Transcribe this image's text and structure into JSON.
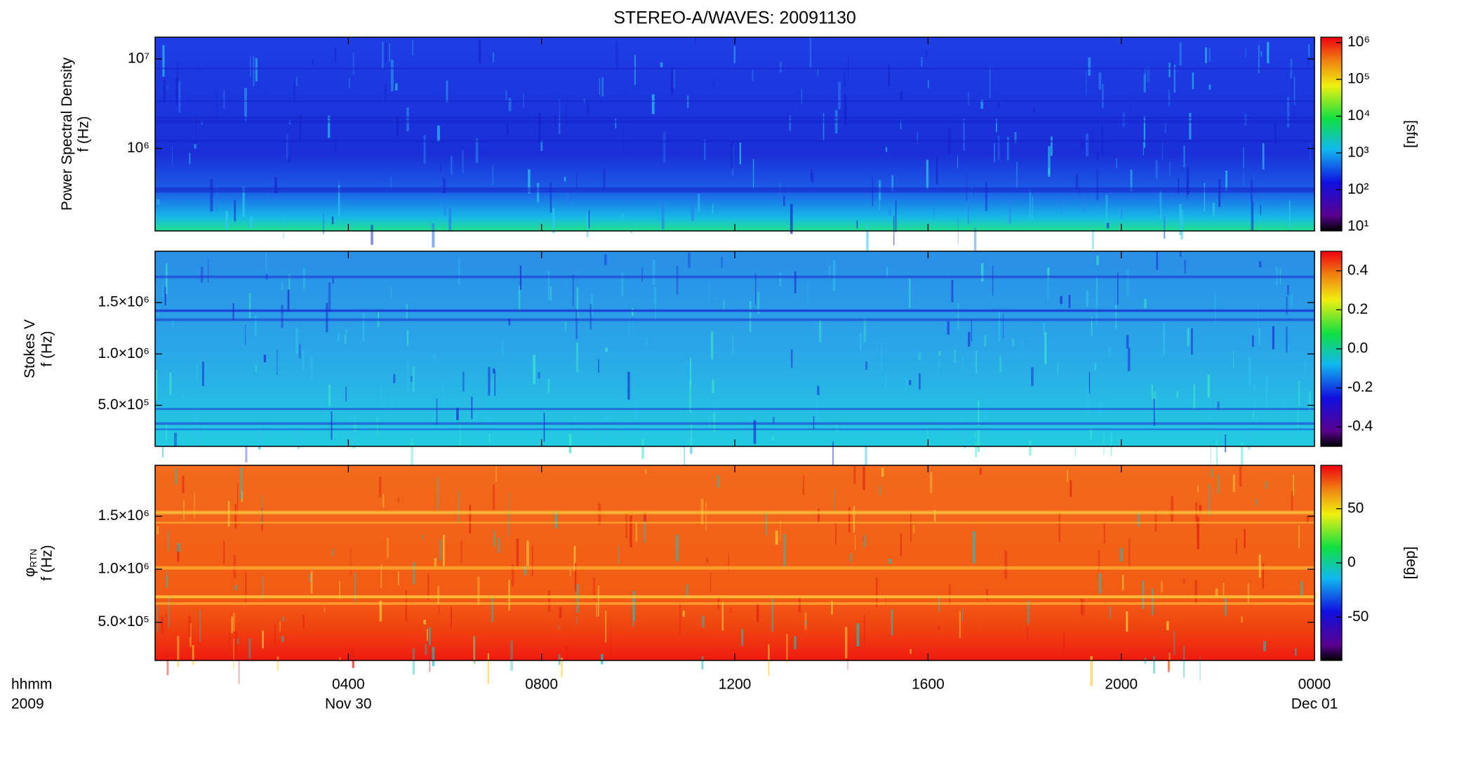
{
  "chart_data": [
    {
      "type": "heatmap",
      "title": "STEREO-A/WAVES: 20091130",
      "ylabel": {
        "name": "Power Spectral Density",
        "unit": "f (Hz)"
      },
      "xlim": [
        0,
        24
      ],
      "ylim": [
        120000,
        17500000
      ],
      "log_y": true,
      "yticks": [
        {
          "value": 1000000,
          "label": "10⁶"
        },
        {
          "value": 10000000,
          "label": "10⁷"
        }
      ],
      "colorbar": {
        "lim": [
          7.6,
          1400000
        ],
        "log": true,
        "label": "[sfu]",
        "ticks": [
          {
            "value": 10,
            "label": "10¹"
          },
          {
            "value": 100,
            "label": "10²"
          },
          {
            "value": 1000,
            "label": "10³"
          },
          {
            "value": 10000,
            "label": "10⁴"
          },
          {
            "value": 100000,
            "label": "10⁵"
          },
          {
            "value": 1000000,
            "label": "10⁶"
          }
        ]
      }
    },
    {
      "type": "heatmap",
      "ylabel": {
        "name": "Stokes V",
        "unit": "f (Hz)"
      },
      "xlim": [
        0,
        24
      ],
      "ylim": [
        100000,
        2000000
      ],
      "yticks": [
        {
          "value": 500000,
          "label": "5.0×10⁵"
        },
        {
          "value": 1000000,
          "label": "1.0×10⁶"
        },
        {
          "value": 1500000,
          "label": "1.5×10⁶"
        }
      ],
      "colorbar": {
        "lim": [
          -0.5,
          0.5
        ],
        "ticks": [
          -0.4,
          -0.2,
          {
            "value": 0,
            "label": "0.0"
          },
          0.2,
          0.4
        ]
      }
    },
    {
      "type": "heatmap",
      "ylabel": {
        "name": "φ",
        "subscript": "RTN",
        "unit": "f (Hz)"
      },
      "xlim": [
        0,
        24
      ],
      "ylim": [
        140000,
        1980000
      ],
      "yticks": [
        {
          "value": 500000,
          "label": "5.0×10⁵"
        },
        {
          "value": 1000000,
          "label": "1.0×10⁶"
        },
        {
          "value": 1500000,
          "label": "1.5×10⁶"
        }
      ],
      "colorbar": {
        "lim": [
          -90,
          90
        ],
        "label": "[deg]",
        "ticks": [
          -50,
          0,
          50
        ]
      },
      "xticks": [
        {
          "value": 4,
          "label": "0400"
        },
        {
          "value": 8,
          "label": "0800"
        },
        {
          "value": 12,
          "label": "1200"
        },
        {
          "value": 16,
          "label": "1600"
        },
        {
          "value": 20,
          "label": "2000"
        },
        {
          "value": 24,
          "label": "0000"
        }
      ],
      "xlabel": "hhmm",
      "year": "2009",
      "date_labels": [
        {
          "value": 4,
          "label": "Nov 30"
        },
        {
          "value": 24,
          "label": "Dec 01"
        }
      ]
    }
  ]
}
